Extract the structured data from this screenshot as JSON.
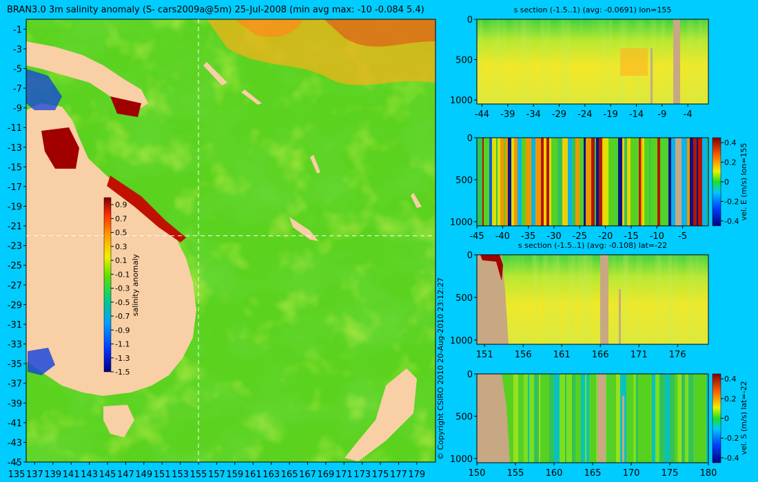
{
  "title": "BRAN3.0 3m salinity anomaly (S- cars2009a@5m) 25-Jul-2008 (min avg max: -10 -0.084 5.4)",
  "copyright": "© Copyright CSIRO 2010  20-Aug-2010 23:12:27",
  "colors": {
    "background": "#00ccff",
    "land": "#f9cfa5",
    "section_land": "#c8a882",
    "crosshair": "#ffffff"
  },
  "chart_data": [
    {
      "type": "heatmap",
      "name": "map",
      "x_ticks": [
        135,
        137,
        139,
        141,
        143,
        145,
        147,
        149,
        151,
        153,
        155,
        157,
        159,
        161,
        163,
        165,
        167,
        169,
        171,
        173,
        175,
        177,
        179
      ],
      "y_ticks": [
        -1,
        -3,
        -5,
        -7,
        -9,
        -11,
        -13,
        -15,
        -17,
        -19,
        -21,
        -23,
        -25,
        -27,
        -29,
        -31,
        -33,
        -35,
        -37,
        -39,
        -41,
        -43,
        -45
      ],
      "xlim": [
        135,
        180
      ],
      "ylim": [
        -45,
        0
      ],
      "crosshair": {
        "lon": 155,
        "lat": -22
      },
      "colorbar": {
        "label": "salinity anomaly",
        "ticks": [
          0.9,
          0.7,
          0.5,
          0.3,
          0.1,
          -0.1,
          -0.3,
          -0.5,
          -0.7,
          -0.9,
          -1.1,
          -1.3,
          -1.5
        ],
        "range": [
          -1.5,
          1.0
        ]
      }
    },
    {
      "type": "heatmap",
      "name": "lat-section-salinity",
      "title": "s section (-1.5..1) (avg: -0.0691) lon=155",
      "x_ticks": [
        -44,
        -39,
        -34,
        -29,
        -24,
        -19,
        -14,
        -9,
        -4
      ],
      "xlim": [
        -45,
        0
      ],
      "y_ticks": [
        0,
        500,
        1000
      ],
      "ylim": [
        1050,
        0
      ]
    },
    {
      "type": "heatmap",
      "name": "lat-section-vel-e",
      "x_ticks": [
        -45,
        -40,
        -35,
        -30,
        -25,
        -20,
        -15,
        -10,
        -5
      ],
      "xlim": [
        -45,
        0
      ],
      "y_ticks": [
        0,
        500,
        1000
      ],
      "ylim": [
        1050,
        0
      ],
      "colorbar": {
        "label": "vel. E (m/s) lon=155",
        "ticks": [
          0.4,
          0.2,
          0,
          -0.2,
          -0.4
        ],
        "range": [
          -0.45,
          0.45
        ]
      }
    },
    {
      "type": "heatmap",
      "name": "lon-section-salinity",
      "title": "s section (-1.5..1) (avg: -0.108) lat=-22",
      "x_ticks": [
        151,
        156,
        161,
        166,
        171,
        176
      ],
      "xlim": [
        150,
        180
      ],
      "y_ticks": [
        0,
        500,
        1000
      ],
      "ylim": [
        1050,
        0
      ]
    },
    {
      "type": "heatmap",
      "name": "lon-section-vel-s",
      "x_ticks": [
        150,
        155,
        160,
        165,
        170,
        175,
        180
      ],
      "xlim": [
        150,
        180
      ],
      "y_ticks": [
        0,
        500,
        1000
      ],
      "ylim": [
        1050,
        0
      ],
      "colorbar": {
        "label": "vel. S (m/s) lat=-22",
        "ticks": [
          0.4,
          0.2,
          0,
          -0.2,
          -0.4
        ],
        "range": [
          -0.45,
          0.45
        ]
      }
    }
  ]
}
